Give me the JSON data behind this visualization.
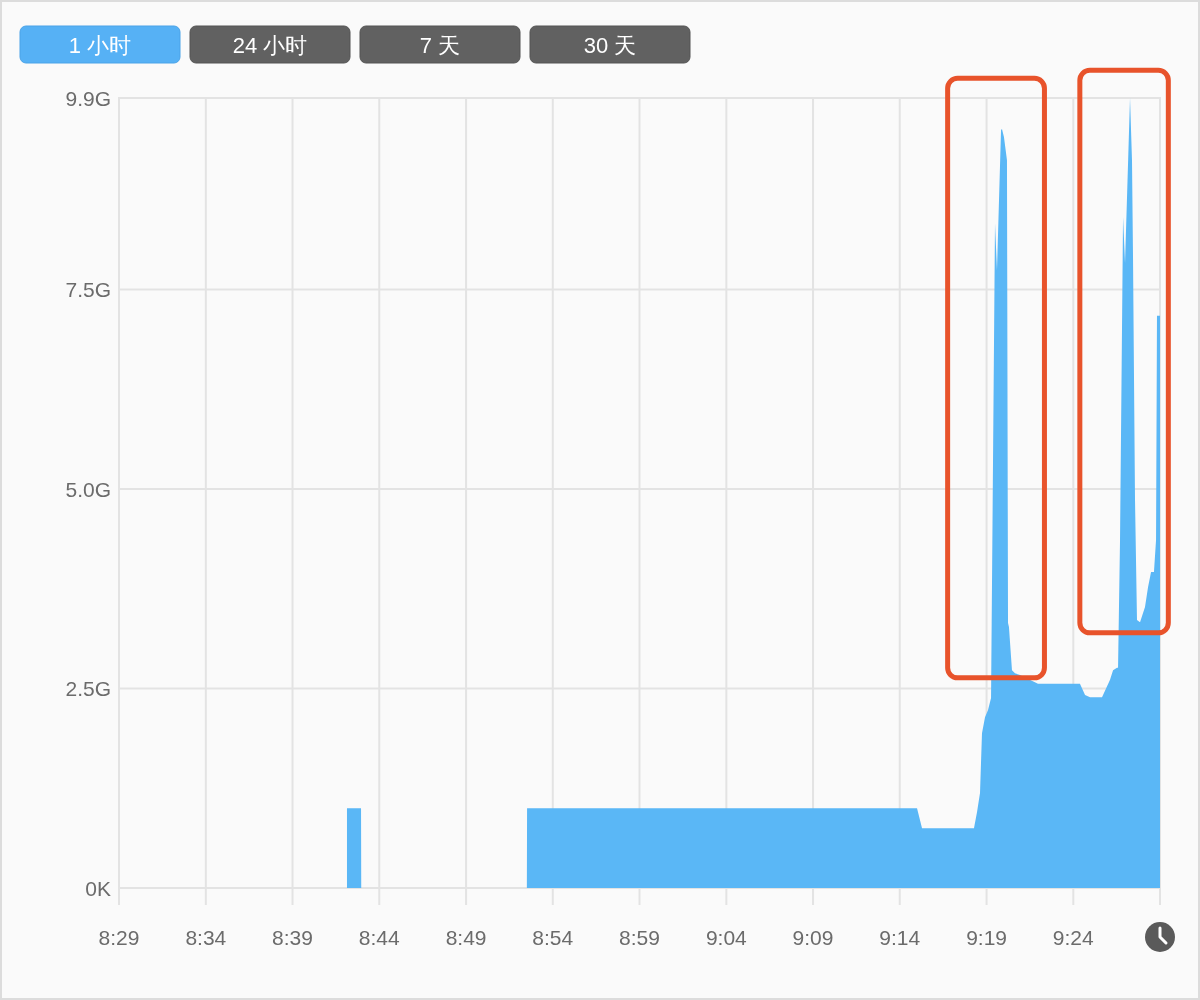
{
  "chart_data": {
    "type": "area",
    "annotations": [
      "1 小时",
      "24 小时",
      "7 天",
      "30 天"
    ],
    "x": [
      8.7023,
      8.7158,
      8.716,
      8.8751,
      8.8753,
      9.2499,
      9.2547,
      9.3046,
      9.3075,
      9.3104,
      9.3123,
      9.3152,
      9.3181,
      9.321,
      9.3248,
      9.3267,
      9.3306,
      9.3315,
      9.3334,
      9.3363,
      9.3373,
      9.3382,
      9.3411,
      9.344,
      9.3488,
      9.3661,
      9.4064,
      9.4113,
      9.4161,
      9.4276,
      9.4353,
      9.4382,
      9.442,
      9.443,
      9.4449,
      9.4478,
      9.4497,
      9.4545,
      9.4564,
      9.4574,
      9.4593,
      9.4612,
      9.4641,
      9.4689,
      9.4718,
      9.4747,
      9.4775,
      9.4795,
      9.4804,
      9.4833
    ],
    "values": [
      1.0,
      1.0,
      0,
      0,
      1.0,
      1.0,
      0.75,
      0.75,
      0.95,
      1.19,
      1.94,
      2.14,
      2.23,
      2.38,
      8.33,
      7.74,
      9.5,
      9.51,
      9.41,
      9.12,
      3.32,
      3.27,
      2.73,
      2.69,
      2.67,
      2.56,
      2.56,
      2.42,
      2.39,
      2.39,
      2.61,
      2.73,
      2.76,
      2.76,
      4.36,
      8.41,
      7.83,
      9.9,
      9.12,
      7.87,
      4.86,
      3.36,
      3.33,
      3.52,
      3.77,
      3.96,
      3.96,
      4.36,
      7.17,
      7.17
    ],
    "color": "#5ab7f6",
    "xlim": [
      8.4833,
      9.4833
    ],
    "ylim": [
      0,
      9.9
    ],
    "xticks": [
      {
        "value": 8.4833,
        "label": "8:29"
      },
      {
        "value": 8.5667,
        "label": "8:34"
      },
      {
        "value": 8.65,
        "label": "8:39"
      },
      {
        "value": 8.7333,
        "label": "8:44"
      },
      {
        "value": 8.8167,
        "label": "8:49"
      },
      {
        "value": 8.9,
        "label": "8:54"
      },
      {
        "value": 8.9833,
        "label": "8:59"
      },
      {
        "value": 9.0667,
        "label": "9:04"
      },
      {
        "value": 9.15,
        "label": "9:09"
      },
      {
        "value": 9.2333,
        "label": "9:14"
      },
      {
        "value": 9.3167,
        "label": "9:19"
      },
      {
        "value": 9.4,
        "label": "9:24"
      },
      {
        "value": 9.4833,
        "label": null
      }
    ],
    "yticks": [
      {
        "value": 0,
        "label": "0K"
      },
      {
        "value": 2.5,
        "label": "2.5G"
      },
      {
        "value": 5,
        "label": "5.0G"
      },
      {
        "value": 7.5,
        "label": "7.5G"
      },
      {
        "value": 9.9,
        "label": "9.9G"
      }
    ],
    "grid": true
  }
}
